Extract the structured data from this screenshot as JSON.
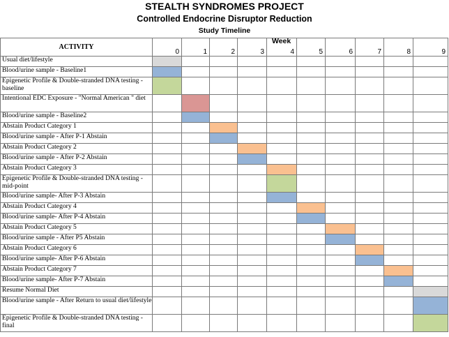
{
  "header": {
    "title": "STEALTH SYNDROMES PROJECT",
    "subtitle": "Controlled Endocrine Disruptor Reduction",
    "timeline_label": "Study Timeline",
    "week_label": "Week",
    "activity_label": "ACTIVITY"
  },
  "weeks": [
    "0",
    "1",
    "2",
    "3",
    "4",
    "5",
    "6",
    "7",
    "8",
    "9"
  ],
  "colors": {
    "gray": "#d9d9d9",
    "blue": "#95b3d7",
    "green": "#c4d79b",
    "red": "#da9694",
    "orange": "#fac090"
  },
  "activities": [
    {
      "label": "Usual diet/lifestyle",
      "week": 0,
      "color": "gray"
    },
    {
      "label": "Blood/urine sample - Baseline1",
      "week": 0,
      "color": "blue"
    },
    {
      "label": "Epigenetic Profile & Double-stranded DNA testing - baseline",
      "week": 0,
      "color": "green"
    },
    {
      "label": "Intentional EDC Exposure - \"Normal American \" diet",
      "week": 1,
      "color": "red"
    },
    {
      "label": "Blood/urine sample - Baseline2",
      "week": 1,
      "color": "blue"
    },
    {
      "label": "Abstain Product Category 1",
      "week": 2,
      "color": "orange"
    },
    {
      "label": "Blood/urine sample - After P-1 Abstain",
      "week": 2,
      "color": "blue"
    },
    {
      "label": "Abstain Product Category 2",
      "week": 3,
      "color": "orange"
    },
    {
      "label": "Blood/urine sample - After P-2 Abstain",
      "week": 3,
      "color": "blue"
    },
    {
      "label": "Abstain Product Category 3",
      "week": 4,
      "color": "orange"
    },
    {
      "label": "Epigenetic Profile & Double-stranded DNA testing - mid-point",
      "week": 4,
      "color": "green"
    },
    {
      "label": "Blood/urine sample- After P-3 Abstain",
      "week": 4,
      "color": "blue"
    },
    {
      "label": "Abstain Product Category 4",
      "week": 5,
      "color": "orange"
    },
    {
      "label": "Blood/urine sample- After P-4 Abstain",
      "week": 5,
      "color": "blue"
    },
    {
      "label": "Abstain Product Category 5",
      "week": 6,
      "color": "orange"
    },
    {
      "label": "Blood/urine sample - After P5 Abstain",
      "week": 6,
      "color": "blue"
    },
    {
      "label": "Abstain Product  Category 6",
      "week": 7,
      "color": "orange"
    },
    {
      "label": "Blood/urine sample- After P-6 Abstain",
      "week": 7,
      "color": "blue"
    },
    {
      "label": "Abstain Product  Category 7",
      "week": 8,
      "color": "orange"
    },
    {
      "label": "Blood/urine sample- After P-7 Abstain",
      "week": 8,
      "color": "blue"
    },
    {
      "label": "Resume Normal Diet",
      "week": 9,
      "color": "gray"
    },
    {
      "label": "Blood/urine sample - After Return to usual diet/lifestyle",
      "week": 9,
      "color": "blue"
    },
    {
      "label": "Epigenetic Profile & Double-stranded DNA testing -final",
      "week": 9,
      "color": "green"
    }
  ]
}
